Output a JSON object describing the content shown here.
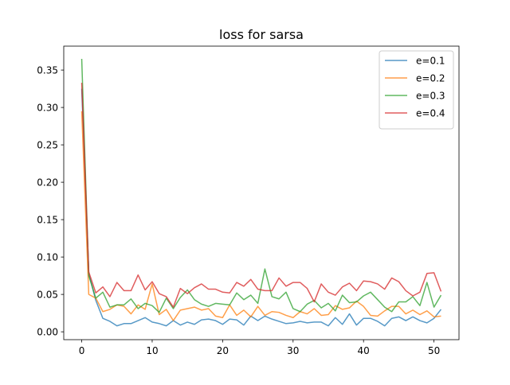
{
  "chart_data": {
    "type": "line",
    "title": "loss for sarsa",
    "xlabel": "",
    "ylabel": "",
    "xlim": [
      -2.55,
      53.55
    ],
    "ylim": [
      -0.0105,
      0.382
    ],
    "xticks": [
      0,
      10,
      20,
      30,
      40,
      50
    ],
    "yticks": [
      0.0,
      0.05,
      0.1,
      0.15,
      0.2,
      0.25,
      0.3,
      0.35
    ],
    "ytick_labels": [
      "0.00",
      "0.05",
      "0.10",
      "0.15",
      "0.20",
      "0.25",
      "0.30",
      "0.35"
    ],
    "grid": false,
    "legend_position": "top-right",
    "x": [
      0,
      1,
      2,
      3,
      4,
      5,
      6,
      7,
      8,
      9,
      10,
      11,
      12,
      13,
      14,
      15,
      16,
      17,
      18,
      19,
      20,
      21,
      22,
      23,
      24,
      25,
      26,
      27,
      28,
      29,
      30,
      31,
      32,
      33,
      34,
      35,
      36,
      37,
      38,
      39,
      40,
      41,
      42,
      43,
      44,
      45,
      46,
      47,
      48,
      49,
      50,
      51
    ],
    "series": [
      {
        "name": "e=0.1",
        "color": "#1f77b4",
        "values": [
          0.325,
          0.078,
          0.042,
          0.018,
          0.014,
          0.008,
          0.011,
          0.011,
          0.015,
          0.019,
          0.013,
          0.011,
          0.008,
          0.015,
          0.009,
          0.013,
          0.01,
          0.016,
          0.017,
          0.015,
          0.01,
          0.017,
          0.016,
          0.009,
          0.021,
          0.015,
          0.021,
          0.017,
          0.014,
          0.011,
          0.012,
          0.014,
          0.012,
          0.013,
          0.013,
          0.008,
          0.019,
          0.01,
          0.024,
          0.009,
          0.018,
          0.018,
          0.014,
          0.008,
          0.018,
          0.02,
          0.015,
          0.02,
          0.015,
          0.012,
          0.018,
          0.03
        ]
      },
      {
        "name": "e=0.2",
        "color": "#ff7f0e",
        "values": [
          0.295,
          0.05,
          0.045,
          0.027,
          0.03,
          0.036,
          0.034,
          0.024,
          0.036,
          0.03,
          0.064,
          0.023,
          0.03,
          0.015,
          0.029,
          0.031,
          0.033,
          0.029,
          0.031,
          0.021,
          0.019,
          0.036,
          0.022,
          0.029,
          0.02,
          0.034,
          0.022,
          0.027,
          0.026,
          0.022,
          0.019,
          0.027,
          0.024,
          0.031,
          0.022,
          0.023,
          0.035,
          0.03,
          0.032,
          0.041,
          0.034,
          0.022,
          0.021,
          0.028,
          0.034,
          0.034,
          0.024,
          0.029,
          0.023,
          0.028,
          0.02,
          0.021
        ]
      },
      {
        "name": "e=0.3",
        "color": "#2ca02c",
        "values": [
          0.365,
          0.075,
          0.045,
          0.053,
          0.033,
          0.036,
          0.036,
          0.044,
          0.031,
          0.038,
          0.035,
          0.026,
          0.045,
          0.031,
          0.046,
          0.056,
          0.043,
          0.037,
          0.034,
          0.038,
          0.037,
          0.036,
          0.052,
          0.043,
          0.049,
          0.038,
          0.084,
          0.047,
          0.044,
          0.053,
          0.031,
          0.027,
          0.037,
          0.042,
          0.032,
          0.038,
          0.028,
          0.049,
          0.039,
          0.04,
          0.048,
          0.053,
          0.043,
          0.033,
          0.027,
          0.04,
          0.04,
          0.047,
          0.035,
          0.066,
          0.033,
          0.049
        ]
      },
      {
        "name": "e=0.4",
        "color": "#d62728",
        "values": [
          0.333,
          0.08,
          0.052,
          0.06,
          0.047,
          0.066,
          0.055,
          0.055,
          0.076,
          0.056,
          0.067,
          0.051,
          0.047,
          0.033,
          0.058,
          0.051,
          0.059,
          0.064,
          0.057,
          0.057,
          0.053,
          0.052,
          0.066,
          0.061,
          0.07,
          0.057,
          0.055,
          0.055,
          0.072,
          0.061,
          0.066,
          0.066,
          0.058,
          0.04,
          0.064,
          0.053,
          0.049,
          0.06,
          0.065,
          0.055,
          0.068,
          0.067,
          0.064,
          0.057,
          0.072,
          0.067,
          0.055,
          0.048,
          0.053,
          0.078,
          0.079,
          0.054
        ]
      }
    ]
  }
}
